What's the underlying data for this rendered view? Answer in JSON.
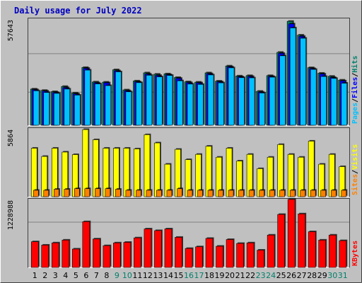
{
  "chart_data": [
    {
      "type": "bar",
      "title": "Daily usage for July 2022",
      "panel": "top",
      "ytick": "57643",
      "ylim": [
        0,
        62000
      ],
      "series_labels": [
        "Pages",
        "Files",
        "Hits"
      ],
      "series_colors": {
        "Pages": "#00c0ff",
        "Files": "#0000ff",
        "Hits": "#00806b"
      },
      "x": [
        "1",
        "2",
        "3",
        "4",
        "5",
        "6",
        "7",
        "8",
        "9",
        "10",
        "11",
        "12",
        "13",
        "14",
        "15",
        "16",
        "17",
        "18",
        "19",
        "20",
        "21",
        "22",
        "23",
        "24",
        "25",
        "26",
        "27",
        "28",
        "29",
        "30",
        "31"
      ],
      "series": [
        {
          "name": "Hits",
          "values": [
            21000,
            20200,
            19500,
            22500,
            18700,
            33500,
            25100,
            25000,
            32200,
            20500,
            25700,
            30400,
            29600,
            29800,
            27700,
            25200,
            25000,
            30400,
            25600,
            34400,
            28600,
            28800,
            19700,
            28800,
            42300,
            60300,
            52300,
            33400,
            30200,
            28400,
            26200
          ]
        },
        {
          "name": "Files",
          "values": [
            20600,
            19800,
            19000,
            21800,
            18200,
            33000,
            24600,
            24600,
            31600,
            20000,
            25200,
            29700,
            28900,
            29300,
            27200,
            24700,
            24600,
            29900,
            25200,
            33900,
            28100,
            28300,
            19200,
            28300,
            41700,
            58800,
            51600,
            32900,
            29700,
            27700,
            25700
          ]
        },
        {
          "name": "Pages",
          "values": [
            20000,
            19000,
            18500,
            21000,
            17500,
            32000,
            24000,
            23000,
            31000,
            19400,
            24700,
            29000,
            28100,
            28900,
            25800,
            23900,
            23700,
            29200,
            24600,
            33300,
            27600,
            27500,
            18700,
            27900,
            40300,
            56500,
            50500,
            32400,
            28300,
            27200,
            24400
          ]
        }
      ]
    },
    {
      "type": "bar",
      "panel": "middle",
      "ytick": "5864",
      "ylim": [
        0,
        6000
      ],
      "series_labels": [
        "Sites",
        "Visits"
      ],
      "series_colors": {
        "Sites": "#ff8000",
        "Visits": "#ffff00"
      },
      "x": [
        "1",
        "2",
        "3",
        "4",
        "5",
        "6",
        "7",
        "8",
        "9",
        "10",
        "11",
        "12",
        "13",
        "14",
        "15",
        "16",
        "17",
        "18",
        "19",
        "20",
        "21",
        "22",
        "23",
        "24",
        "25",
        "26",
        "27",
        "28",
        "29",
        "30",
        "31"
      ],
      "series": [
        {
          "name": "Visits",
          "values": [
            4240,
            3520,
            4240,
            3900,
            3680,
            5870,
            4980,
            4240,
            4240,
            4240,
            4180,
            5420,
            4700,
            2840,
            4140,
            3240,
            3700,
            4410,
            3450,
            4240,
            3120,
            3700,
            2450,
            3450,
            4560,
            3700,
            3450,
            4860,
            2840,
            3700,
            2630
          ]
        },
        {
          "name": "Sites",
          "values": [
            560,
            560,
            650,
            650,
            700,
            700,
            700,
            700,
            650,
            560,
            560,
            560,
            560,
            560,
            700,
            560,
            560,
            560,
            560,
            560,
            560,
            560,
            560,
            560,
            560,
            560,
            560,
            560,
            560,
            560,
            560
          ]
        }
      ]
    },
    {
      "type": "bar",
      "panel": "bottom",
      "ytick": "1228988",
      "ylim": [
        0,
        1230000
      ],
      "series_labels": [
        "KBytes"
      ],
      "series_colors": {
        "KBytes": "#ff0000"
      },
      "x": [
        "1",
        "2",
        "3",
        "4",
        "5",
        "6",
        "7",
        "8",
        "9",
        "10",
        "11",
        "12",
        "13",
        "14",
        "15",
        "16",
        "17",
        "18",
        "19",
        "20",
        "21",
        "22",
        "23",
        "24",
        "25",
        "26",
        "27",
        "28",
        "29",
        "30",
        "31"
      ],
      "series": [
        {
          "name": "KBytes",
          "values": [
            460000,
            400000,
            440000,
            490000,
            330000,
            820000,
            510000,
            390000,
            440000,
            450000,
            530000,
            690000,
            660000,
            690000,
            540000,
            340000,
            370000,
            520000,
            380000,
            500000,
            430000,
            440000,
            310000,
            580000,
            950000,
            1220000,
            960000,
            640000,
            490000,
            580000,
            480000
          ]
        }
      ],
      "weekend_days": [
        "9",
        "10",
        "16",
        "17",
        "23",
        "24",
        "30",
        "31"
      ]
    }
  ],
  "colors": {
    "title": "#0000c0",
    "background": "#c0c0c0",
    "plot": "#c0c0c0",
    "gridline": "#808080",
    "weekday_label": "#000000",
    "weekend_label": "#00806b"
  }
}
